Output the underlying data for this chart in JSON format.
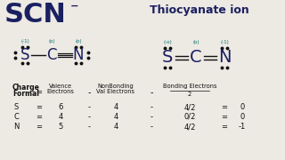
{
  "title_left": "SCN",
  "title_left_charge": "⁻",
  "title_right": "Thiocyanate ion",
  "bg_color": "#ede9e3",
  "dark_blue": "#1a2060",
  "teal": "#007070",
  "black": "#111111",
  "rows": [
    {
      "elem": "S",
      "valence": "6",
      "nonbonding": "4",
      "bonding": "4/2",
      "result": "0"
    },
    {
      "elem": "C",
      "valence": "4",
      "nonbonding": "4",
      "bonding": "0/2",
      "result": "0"
    },
    {
      "elem": "N",
      "valence": "5",
      "nonbonding": "4",
      "bonding": "4/2",
      "result": "-1"
    }
  ],
  "left_charges": [
    "(-1)",
    "(o)",
    "(o)"
  ],
  "right_charges": [
    "(-o)",
    "(o)",
    "(-1)"
  ]
}
